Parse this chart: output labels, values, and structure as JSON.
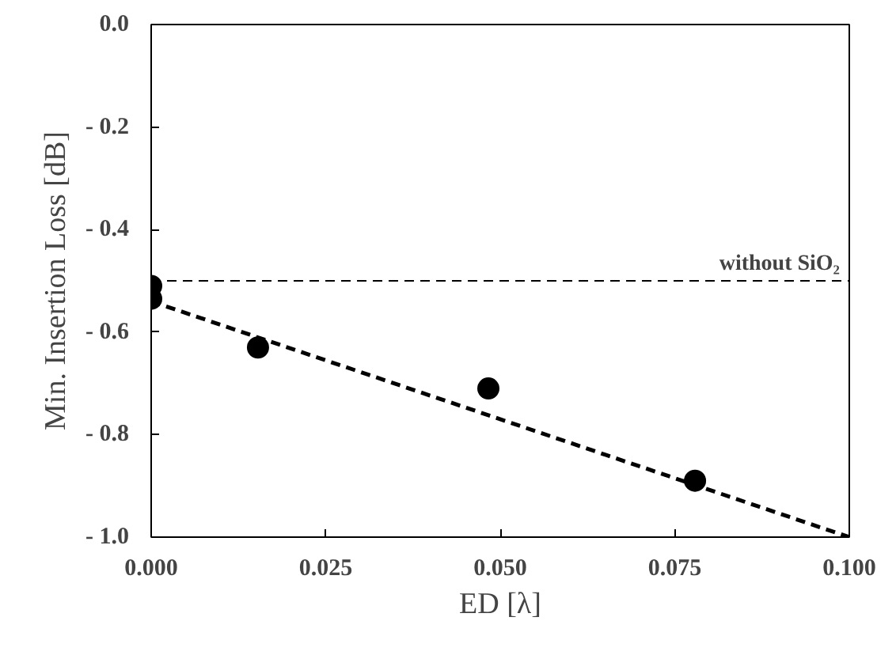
{
  "chart_data": {
    "type": "scatter",
    "xlabel": "ED [λ]",
    "ylabel": "Min. Insertion Loss [dB]",
    "xlim": [
      0.0,
      0.1
    ],
    "ylim": [
      -1.0,
      0.0
    ],
    "xticks": [
      {
        "value": 0,
        "label": "0.000"
      },
      {
        "value": 0.025,
        "label": "0.025"
      },
      {
        "value": 0.05,
        "label": "0.050"
      },
      {
        "value": 0.075,
        "label": "0.075"
      },
      {
        "value": 0.1,
        "label": "0.100"
      }
    ],
    "yticks": [
      {
        "value": 0,
        "label": "0.0"
      },
      {
        "value": -0.2,
        "label": "- 0.2"
      },
      {
        "value": -0.4,
        "label": "- 0.4"
      },
      {
        "value": -0.6,
        "label": "- 0.6"
      },
      {
        "value": -0.8,
        "label": "- 0.8"
      },
      {
        "value": -1.0,
        "label": "- 1.0"
      }
    ],
    "grid": false,
    "marker": "circle",
    "series": [
      {
        "color": "#000000",
        "x": [
          0.0,
          0.0,
          0.0153,
          0.0483,
          0.0779
        ],
        "values": [
          -0.51,
          -0.535,
          -0.63,
          -0.71,
          -0.89
        ]
      },
      {
        "type": "line",
        "color": "#000000",
        "line_style": "dashed",
        "marker": "none",
        "x": [
          0.0,
          0.1
        ],
        "values": [
          -0.54,
          -1.0
        ]
      }
    ],
    "ref_lines": [
      {
        "axis": "y",
        "value": -0.5,
        "label": "without SiO₂",
        "color": "#000000",
        "line_style": "dashed"
      }
    ]
  }
}
